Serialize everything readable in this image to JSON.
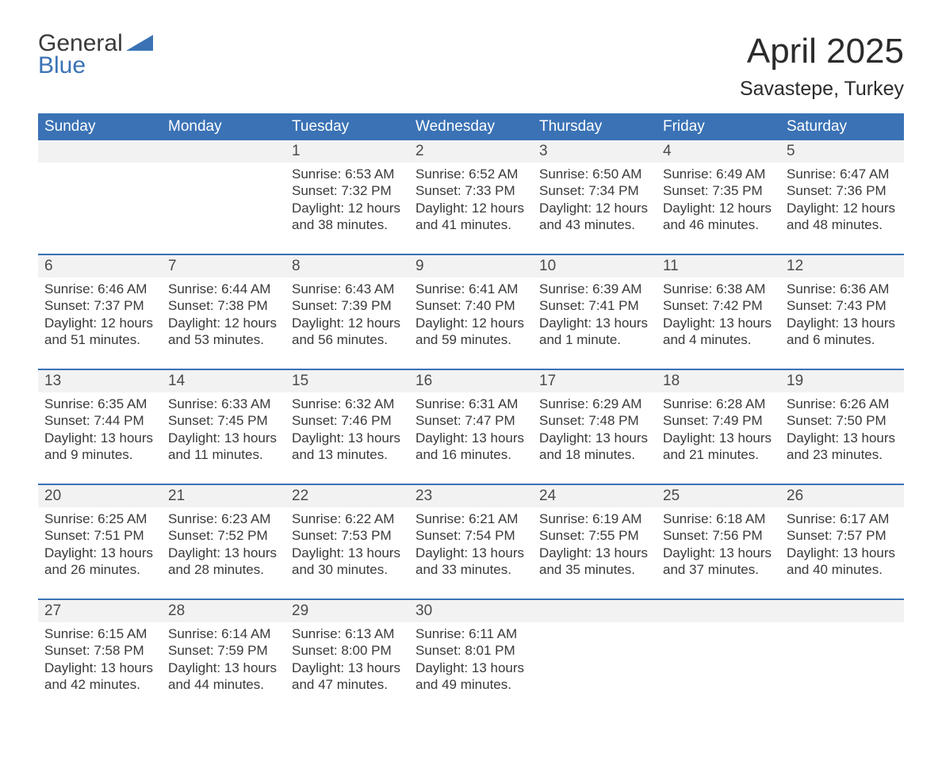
{
  "logo": {
    "line1": "General",
    "line2": "Blue",
    "wedge_color": "#3a72b5"
  },
  "title": "April 2025",
  "location": "Savastepe, Turkey",
  "colors": {
    "header_bg": "#3a72b5",
    "header_text": "#ffffff",
    "daynum_bg": "#f2f2f2",
    "week_border": "#3a72b5",
    "body_text": "#3a3a3a",
    "page_bg": "#ffffff"
  },
  "typography": {
    "month_title_fontsize": 44,
    "location_fontsize": 25,
    "dow_fontsize": 19,
    "daynum_fontsize": 19,
    "body_fontsize": 17
  },
  "days_of_week": [
    "Sunday",
    "Monday",
    "Tuesday",
    "Wednesday",
    "Thursday",
    "Friday",
    "Saturday"
  ],
  "weeks": [
    [
      {
        "n": "",
        "sunrise": "",
        "sunset": "",
        "daylight": ""
      },
      {
        "n": "",
        "sunrise": "",
        "sunset": "",
        "daylight": ""
      },
      {
        "n": "1",
        "sunrise": "Sunrise: 6:53 AM",
        "sunset": "Sunset: 7:32 PM",
        "daylight": "Daylight: 12 hours and 38 minutes."
      },
      {
        "n": "2",
        "sunrise": "Sunrise: 6:52 AM",
        "sunset": "Sunset: 7:33 PM",
        "daylight": "Daylight: 12 hours and 41 minutes."
      },
      {
        "n": "3",
        "sunrise": "Sunrise: 6:50 AM",
        "sunset": "Sunset: 7:34 PM",
        "daylight": "Daylight: 12 hours and 43 minutes."
      },
      {
        "n": "4",
        "sunrise": "Sunrise: 6:49 AM",
        "sunset": "Sunset: 7:35 PM",
        "daylight": "Daylight: 12 hours and 46 minutes."
      },
      {
        "n": "5",
        "sunrise": "Sunrise: 6:47 AM",
        "sunset": "Sunset: 7:36 PM",
        "daylight": "Daylight: 12 hours and 48 minutes."
      }
    ],
    [
      {
        "n": "6",
        "sunrise": "Sunrise: 6:46 AM",
        "sunset": "Sunset: 7:37 PM",
        "daylight": "Daylight: 12 hours and 51 minutes."
      },
      {
        "n": "7",
        "sunrise": "Sunrise: 6:44 AM",
        "sunset": "Sunset: 7:38 PM",
        "daylight": "Daylight: 12 hours and 53 minutes."
      },
      {
        "n": "8",
        "sunrise": "Sunrise: 6:43 AM",
        "sunset": "Sunset: 7:39 PM",
        "daylight": "Daylight: 12 hours and 56 minutes."
      },
      {
        "n": "9",
        "sunrise": "Sunrise: 6:41 AM",
        "sunset": "Sunset: 7:40 PM",
        "daylight": "Daylight: 12 hours and 59 minutes."
      },
      {
        "n": "10",
        "sunrise": "Sunrise: 6:39 AM",
        "sunset": "Sunset: 7:41 PM",
        "daylight": "Daylight: 13 hours and 1 minute."
      },
      {
        "n": "11",
        "sunrise": "Sunrise: 6:38 AM",
        "sunset": "Sunset: 7:42 PM",
        "daylight": "Daylight: 13 hours and 4 minutes."
      },
      {
        "n": "12",
        "sunrise": "Sunrise: 6:36 AM",
        "sunset": "Sunset: 7:43 PM",
        "daylight": "Daylight: 13 hours and 6 minutes."
      }
    ],
    [
      {
        "n": "13",
        "sunrise": "Sunrise: 6:35 AM",
        "sunset": "Sunset: 7:44 PM",
        "daylight": "Daylight: 13 hours and 9 minutes."
      },
      {
        "n": "14",
        "sunrise": "Sunrise: 6:33 AM",
        "sunset": "Sunset: 7:45 PM",
        "daylight": "Daylight: 13 hours and 11 minutes."
      },
      {
        "n": "15",
        "sunrise": "Sunrise: 6:32 AM",
        "sunset": "Sunset: 7:46 PM",
        "daylight": "Daylight: 13 hours and 13 minutes."
      },
      {
        "n": "16",
        "sunrise": "Sunrise: 6:31 AM",
        "sunset": "Sunset: 7:47 PM",
        "daylight": "Daylight: 13 hours and 16 minutes."
      },
      {
        "n": "17",
        "sunrise": "Sunrise: 6:29 AM",
        "sunset": "Sunset: 7:48 PM",
        "daylight": "Daylight: 13 hours and 18 minutes."
      },
      {
        "n": "18",
        "sunrise": "Sunrise: 6:28 AM",
        "sunset": "Sunset: 7:49 PM",
        "daylight": "Daylight: 13 hours and 21 minutes."
      },
      {
        "n": "19",
        "sunrise": "Sunrise: 6:26 AM",
        "sunset": "Sunset: 7:50 PM",
        "daylight": "Daylight: 13 hours and 23 minutes."
      }
    ],
    [
      {
        "n": "20",
        "sunrise": "Sunrise: 6:25 AM",
        "sunset": "Sunset: 7:51 PM",
        "daylight": "Daylight: 13 hours and 26 minutes."
      },
      {
        "n": "21",
        "sunrise": "Sunrise: 6:23 AM",
        "sunset": "Sunset: 7:52 PM",
        "daylight": "Daylight: 13 hours and 28 minutes."
      },
      {
        "n": "22",
        "sunrise": "Sunrise: 6:22 AM",
        "sunset": "Sunset: 7:53 PM",
        "daylight": "Daylight: 13 hours and 30 minutes."
      },
      {
        "n": "23",
        "sunrise": "Sunrise: 6:21 AM",
        "sunset": "Sunset: 7:54 PM",
        "daylight": "Daylight: 13 hours and 33 minutes."
      },
      {
        "n": "24",
        "sunrise": "Sunrise: 6:19 AM",
        "sunset": "Sunset: 7:55 PM",
        "daylight": "Daylight: 13 hours and 35 minutes."
      },
      {
        "n": "25",
        "sunrise": "Sunrise: 6:18 AM",
        "sunset": "Sunset: 7:56 PM",
        "daylight": "Daylight: 13 hours and 37 minutes."
      },
      {
        "n": "26",
        "sunrise": "Sunrise: 6:17 AM",
        "sunset": "Sunset: 7:57 PM",
        "daylight": "Daylight: 13 hours and 40 minutes."
      }
    ],
    [
      {
        "n": "27",
        "sunrise": "Sunrise: 6:15 AM",
        "sunset": "Sunset: 7:58 PM",
        "daylight": "Daylight: 13 hours and 42 minutes."
      },
      {
        "n": "28",
        "sunrise": "Sunrise: 6:14 AM",
        "sunset": "Sunset: 7:59 PM",
        "daylight": "Daylight: 13 hours and 44 minutes."
      },
      {
        "n": "29",
        "sunrise": "Sunrise: 6:13 AM",
        "sunset": "Sunset: 8:00 PM",
        "daylight": "Daylight: 13 hours and 47 minutes."
      },
      {
        "n": "30",
        "sunrise": "Sunrise: 6:11 AM",
        "sunset": "Sunset: 8:01 PM",
        "daylight": "Daylight: 13 hours and 49 minutes."
      },
      {
        "n": "",
        "sunrise": "",
        "sunset": "",
        "daylight": ""
      },
      {
        "n": "",
        "sunrise": "",
        "sunset": "",
        "daylight": ""
      },
      {
        "n": "",
        "sunrise": "",
        "sunset": "",
        "daylight": ""
      }
    ]
  ]
}
